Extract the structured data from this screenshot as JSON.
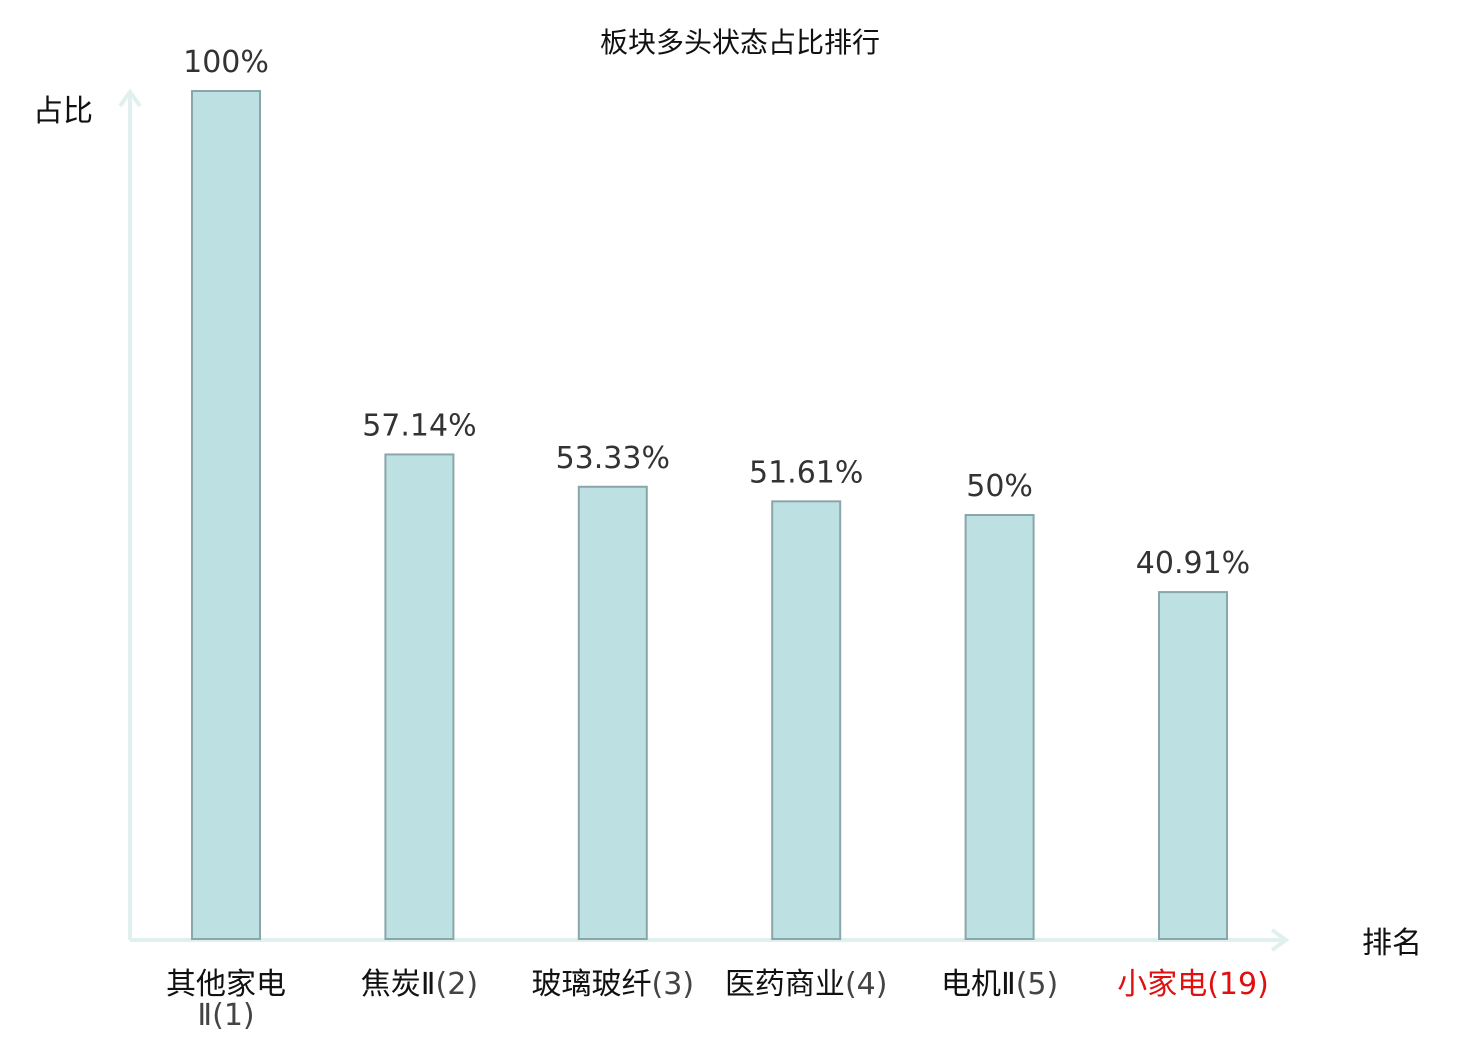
{
  "chart_data": {
    "type": "bar",
    "title": "板块多头状态占比排行",
    "ylabel": "占比",
    "xlabel": "排名",
    "ylim": [
      0,
      100
    ],
    "grid": false,
    "categories": [
      {
        "name": "其他家电Ⅱ",
        "rank": "(1)",
        "highlight": false
      },
      {
        "name": "焦炭Ⅱ",
        "rank": "(2)",
        "highlight": false
      },
      {
        "name": "玻璃玻纤",
        "rank": "(3)",
        "highlight": false
      },
      {
        "name": "医药商业",
        "rank": "(4)",
        "highlight": false
      },
      {
        "name": "电机Ⅱ",
        "rank": "(5)",
        "highlight": false
      },
      {
        "name": "小家电",
        "rank": "(19)",
        "highlight": true
      }
    ],
    "values": [
      100,
      57.14,
      53.33,
      51.61,
      50,
      40.91
    ],
    "value_labels": [
      "100%",
      "57.14%",
      "53.33%",
      "51.61%",
      "50%",
      "40.91%"
    ],
    "colors": {
      "bar_fill": "#bde0e3",
      "bar_stroke": "#8aa6a8",
      "axis": "#dff0ee",
      "highlight": "#e01010"
    }
  }
}
